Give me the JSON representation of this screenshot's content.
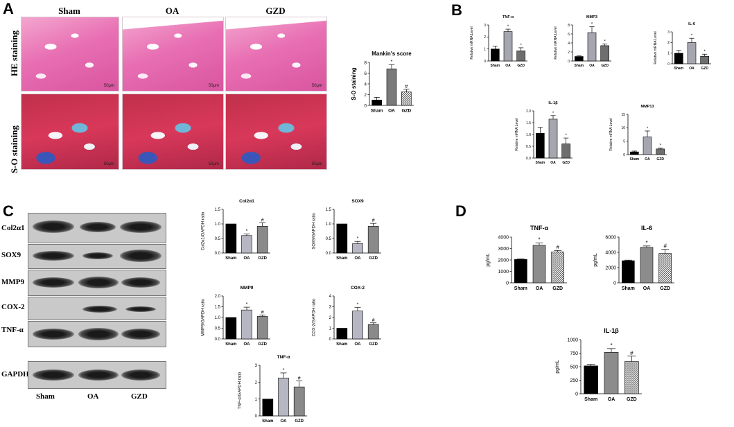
{
  "panels": {
    "A": "A",
    "B": "B",
    "C": "C",
    "D": "D"
  },
  "panelA": {
    "columns": [
      "Sham",
      "OA",
      "GZD"
    ],
    "rows": [
      "HE staining",
      "S-O staining"
    ],
    "scale": "50μm"
  },
  "mankin": {
    "title": "Mankin's score",
    "ylabel": "S-O staining"
  },
  "mrna_ylabel": "Relative mRNA Level",
  "blot": {
    "proteins": [
      "Col2α1",
      "SOX9",
      "MMP9",
      "COX-2",
      "TNF-α",
      "GAPDH"
    ],
    "lanes": [
      "Sham",
      "OA",
      "GZD"
    ]
  },
  "chart_data": [
    {
      "id": "mankin",
      "type": "bar",
      "title": "Mankin's score",
      "ylabel": "S-O staining",
      "categories": [
        "Sham",
        "OA",
        "GZD"
      ],
      "values": [
        1.0,
        6.8,
        2.5
      ],
      "errors": [
        0.5,
        0.8,
        0.5
      ],
      "ylim": [
        0,
        8
      ],
      "ticks": [
        0,
        2,
        4,
        6,
        8
      ],
      "marks": [
        "",
        "*",
        "#"
      ]
    },
    {
      "id": "tnf_mrna",
      "type": "bar",
      "title": "TNF-α",
      "ylabel": "Relative mRNA Level",
      "categories": [
        "Sham",
        "OA",
        "GZD"
      ],
      "values": [
        1.0,
        2.45,
        0.85
      ],
      "errors": [
        0.25,
        0.2,
        0.25
      ],
      "ylim": [
        0,
        3
      ],
      "ticks": [
        0,
        1,
        2,
        3
      ],
      "marks": [
        "",
        "*",
        "*"
      ]
    },
    {
      "id": "mmp3_mrna",
      "type": "bar",
      "title": "MMP3",
      "ylabel": "Relative mRNA Level",
      "categories": [
        "Sham",
        "OA",
        "GZD"
      ],
      "values": [
        1.0,
        6.3,
        3.4
      ],
      "errors": [
        0.2,
        1.3,
        0.4
      ],
      "ylim": [
        0,
        8
      ],
      "ticks": [
        0,
        2,
        4,
        6,
        8
      ],
      "marks": [
        "",
        "*",
        "*"
      ]
    },
    {
      "id": "il6_mrna",
      "type": "bar",
      "title": "IL-6",
      "ylabel": "Relative mRNA Level",
      "categories": [
        "Sham",
        "OA",
        "GZD"
      ],
      "values": [
        1.0,
        2.0,
        0.7
      ],
      "errors": [
        0.25,
        0.4,
        0.2
      ],
      "ylim": [
        0,
        3
      ],
      "ticks": [
        0,
        1,
        2,
        3
      ],
      "marks": [
        "",
        "*",
        "*"
      ]
    },
    {
      "id": "il1b_mrna",
      "type": "bar",
      "title": "IL-1β",
      "ylabel": "Relative mRNA Level",
      "categories": [
        "Sham",
        "OA",
        "GZD"
      ],
      "values": [
        1.05,
        1.65,
        0.6
      ],
      "errors": [
        0.25,
        0.15,
        0.25
      ],
      "ylim": [
        0,
        2
      ],
      "ticks": [
        0.0,
        0.5,
        1.0,
        1.5,
        2.0
      ],
      "marks": [
        "",
        "*",
        "*"
      ]
    },
    {
      "id": "mmp13_mrna",
      "type": "bar",
      "title": "MMP13",
      "ylabel": "Relative mRNA Level",
      "categories": [
        "Sham",
        "OA",
        "GZD"
      ],
      "values": [
        1.0,
        6.6,
        2.1
      ],
      "errors": [
        0.3,
        2.2,
        0.3
      ],
      "ylim": [
        0,
        15
      ],
      "ticks": [
        0,
        5,
        10,
        15
      ],
      "marks": [
        "",
        "*",
        "*"
      ]
    },
    {
      "id": "col2_wb",
      "type": "bar",
      "title": "Col2α1",
      "ylabel": "Col2α1/GAPDH ratio",
      "categories": [
        "Sham",
        "OA",
        "GZD"
      ],
      "values": [
        1.0,
        0.6,
        0.92
      ],
      "errors": [
        0,
        0.05,
        0.12
      ],
      "ylim": [
        0,
        1.5
      ],
      "ticks": [
        0.0,
        0.5,
        1.0,
        1.5
      ],
      "marks": [
        "",
        "*",
        "#"
      ]
    },
    {
      "id": "sox9_wb",
      "type": "bar",
      "title": "SOX9",
      "ylabel": "SOX9/GAPDH ratio",
      "categories": [
        "Sham",
        "OA",
        "GZD"
      ],
      "values": [
        1.0,
        0.32,
        0.92
      ],
      "errors": [
        0,
        0.08,
        0.1
      ],
      "ylim": [
        0,
        1.5
      ],
      "ticks": [
        0.0,
        0.5,
        1.0,
        1.5
      ],
      "marks": [
        "",
        "*",
        "#"
      ]
    },
    {
      "id": "mmp9_wb",
      "type": "bar",
      "title": "MMP9",
      "ylabel": "MMP9/GAPDH ratio",
      "categories": [
        "Sham",
        "OA",
        "GZD"
      ],
      "values": [
        1.0,
        1.35,
        1.05
      ],
      "errors": [
        0,
        0.13,
        0.07
      ],
      "ylim": [
        0,
        2
      ],
      "ticks": [
        0.0,
        0.5,
        1.0,
        1.5,
        2.0
      ],
      "marks": [
        "",
        "*",
        "#"
      ]
    },
    {
      "id": "cox2_wb",
      "type": "bar",
      "title": "COX-2",
      "ylabel": "COX-2/GAPDH ratio",
      "categories": [
        "Sham",
        "OA",
        "GZD"
      ],
      "values": [
        1.0,
        2.6,
        1.35
      ],
      "errors": [
        0,
        0.35,
        0.15
      ],
      "ylim": [
        0,
        4
      ],
      "ticks": [
        0,
        1,
        2,
        3,
        4
      ],
      "marks": [
        "",
        "*",
        "#"
      ]
    },
    {
      "id": "tnf_wb",
      "type": "bar",
      "title": "TNF-α",
      "ylabel": "TNF-α/GAPDH ratio",
      "categories": [
        "Sham",
        "OA",
        "GZD"
      ],
      "values": [
        1.0,
        2.25,
        1.72
      ],
      "errors": [
        0,
        0.3,
        0.35
      ],
      "ylim": [
        0,
        3
      ],
      "ticks": [
        0,
        1,
        2,
        3
      ],
      "marks": [
        "",
        "*",
        "#"
      ]
    },
    {
      "id": "tnf_elisa",
      "type": "bar",
      "title": "TNF-α",
      "ylabel": "pg/mL",
      "categories": [
        "Sham",
        "OA",
        "GZD"
      ],
      "values": [
        2050,
        3280,
        2700
      ],
      "errors": [
        40,
        200,
        130
      ],
      "ylim": [
        0,
        4000
      ],
      "ticks": [
        0,
        1000,
        2000,
        3000,
        4000
      ],
      "marks": [
        "",
        "*",
        "#"
      ]
    },
    {
      "id": "il6_elisa",
      "type": "bar",
      "title": "IL-6",
      "ylabel": "pg/mL",
      "categories": [
        "Sham",
        "OA",
        "GZD"
      ],
      "values": [
        2900,
        4650,
        3850
      ],
      "errors": [
        80,
        180,
        550
      ],
      "ylim": [
        0,
        6000
      ],
      "ticks": [
        0,
        2000,
        4000,
        6000
      ],
      "marks": [
        "",
        "*",
        "#"
      ]
    },
    {
      "id": "il1b_elisa",
      "type": "bar",
      "title": "IL-1β",
      "ylabel": "pg/mL",
      "categories": [
        "Sham",
        "OA",
        "GZD"
      ],
      "values": [
        515,
        765,
        595
      ],
      "errors": [
        30,
        70,
        100
      ],
      "ylim": [
        0,
        1000
      ],
      "ticks": [
        0,
        250,
        500,
        750,
        1000
      ],
      "marks": [
        "",
        "*",
        "#"
      ]
    }
  ],
  "colors": {
    "sham": "#000000",
    "oa_mrna": "#a6a6b0",
    "gzd_mrna": "#6e6e6e",
    "oa_wb": "#b7b7c4",
    "gzd_wb": "#8a8a8a",
    "oa_d": "#8c8c8c",
    "gzd_d": "#ffffff"
  }
}
